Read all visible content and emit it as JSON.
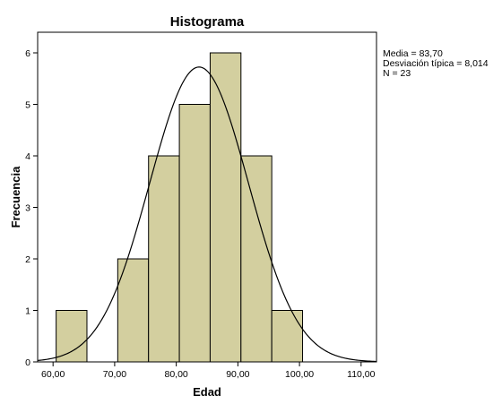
{
  "chart_data": {
    "type": "bar",
    "title": "Histograma",
    "xlabel": "Edad",
    "ylabel": "Frecuencia",
    "xlim": [
      57.5,
      112.5
    ],
    "ylim": [
      0,
      6.4
    ],
    "x_ticks": [
      "60,00",
      "70,00",
      "80,00",
      "90,00",
      "100,00",
      "110,00"
    ],
    "x_tick_values": [
      60,
      70,
      80,
      90,
      100,
      110
    ],
    "y_ticks": [
      "0",
      "1",
      "2",
      "3",
      "4",
      "5",
      "6"
    ],
    "y_tick_values": [
      0,
      1,
      2,
      3,
      4,
      5,
      6
    ],
    "bins": [
      {
        "start": 60.5,
        "end": 65.5,
        "count": 1
      },
      {
        "start": 70.5,
        "end": 75.5,
        "count": 2
      },
      {
        "start": 75.5,
        "end": 80.5,
        "count": 4
      },
      {
        "start": 80.5,
        "end": 85.5,
        "count": 5
      },
      {
        "start": 85.5,
        "end": 90.5,
        "count": 6
      },
      {
        "start": 90.5,
        "end": 95.5,
        "count": 4
      },
      {
        "start": 95.5,
        "end": 100.5,
        "count": 1
      }
    ],
    "normal_curve": {
      "mean": 83.7,
      "sd": 8.014,
      "n": 23,
      "bin_width": 5
    },
    "stats_text": [
      "Media = 83,70",
      "Desviación típica = 8,014",
      "N = 23"
    ],
    "bar_color": "#d3cf9f",
    "bar_edge_color": "#000000",
    "curve_color": "#000000",
    "grid": false,
    "legend": "right"
  }
}
